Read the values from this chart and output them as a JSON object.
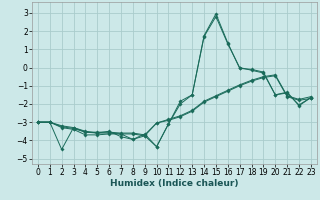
{
  "xlabel": "Humidex (Indice chaleur)",
  "ylabel": "",
  "xlim": [
    -0.5,
    23.5
  ],
  "ylim": [
    -5.3,
    3.6
  ],
  "yticks": [
    -5,
    -4,
    -3,
    -2,
    -1,
    0,
    1,
    2,
    3
  ],
  "xticks": [
    0,
    1,
    2,
    3,
    4,
    5,
    6,
    7,
    8,
    9,
    10,
    11,
    12,
    13,
    14,
    15,
    16,
    17,
    18,
    19,
    20,
    21,
    22,
    23
  ],
  "bg_color": "#cce8e8",
  "grid_color": "#aacccc",
  "line_color": "#1a6b5a",
  "lines": [
    {
      "x": [
        0,
        1,
        2,
        3,
        4,
        5,
        6,
        7,
        8,
        9,
        10,
        11,
        12,
        13,
        14,
        15,
        16,
        17,
        18,
        19,
        20,
        21,
        22,
        23
      ],
      "y": [
        -3.0,
        -3.0,
        -4.5,
        -3.3,
        -3.5,
        -3.6,
        -3.5,
        -3.8,
        -3.95,
        -3.75,
        -4.35,
        -3.1,
        -1.85,
        -1.5,
        1.75,
        2.95,
        1.35,
        -0.05,
        -0.1,
        -0.25,
        -1.5,
        -1.35,
        -2.1,
        -1.65
      ]
    },
    {
      "x": [
        0,
        1,
        2,
        3,
        4,
        5,
        6,
        7,
        8,
        9,
        10,
        11,
        12,
        13,
        14,
        15,
        16,
        17,
        18,
        19,
        20,
        21,
        22,
        23
      ],
      "y": [
        -3.0,
        -3.0,
        -3.3,
        -3.4,
        -3.7,
        -3.7,
        -3.65,
        -3.65,
        -3.95,
        -3.65,
        -4.35,
        -3.1,
        -2.0,
        -1.5,
        1.7,
        2.8,
        1.3,
        0.0,
        -0.15,
        -0.3,
        -1.5,
        -1.4,
        -2.05,
        -1.65
      ]
    },
    {
      "x": [
        0,
        1,
        2,
        3,
        4,
        5,
        6,
        7,
        8,
        9,
        10,
        11,
        12,
        13,
        14,
        15,
        16,
        17,
        18,
        19,
        20,
        21,
        22,
        23
      ],
      "y": [
        -3.0,
        -3.0,
        -3.2,
        -3.3,
        -3.55,
        -3.55,
        -3.55,
        -3.6,
        -3.6,
        -3.7,
        -3.05,
        -2.85,
        -2.65,
        -2.35,
        -1.85,
        -1.55,
        -1.25,
        -0.95,
        -0.7,
        -0.5,
        -0.4,
        -1.55,
        -1.75,
        -1.6
      ]
    },
    {
      "x": [
        0,
        1,
        2,
        3,
        4,
        5,
        6,
        7,
        8,
        9,
        10,
        11,
        12,
        13,
        14,
        15,
        16,
        17,
        18,
        19,
        20,
        21,
        22,
        23
      ],
      "y": [
        -3.0,
        -3.0,
        -3.25,
        -3.35,
        -3.55,
        -3.6,
        -3.6,
        -3.65,
        -3.65,
        -3.75,
        -3.05,
        -2.9,
        -2.7,
        -2.4,
        -1.9,
        -1.6,
        -1.3,
        -1.0,
        -0.75,
        -0.55,
        -0.45,
        -1.6,
        -1.8,
        -1.7
      ]
    }
  ]
}
